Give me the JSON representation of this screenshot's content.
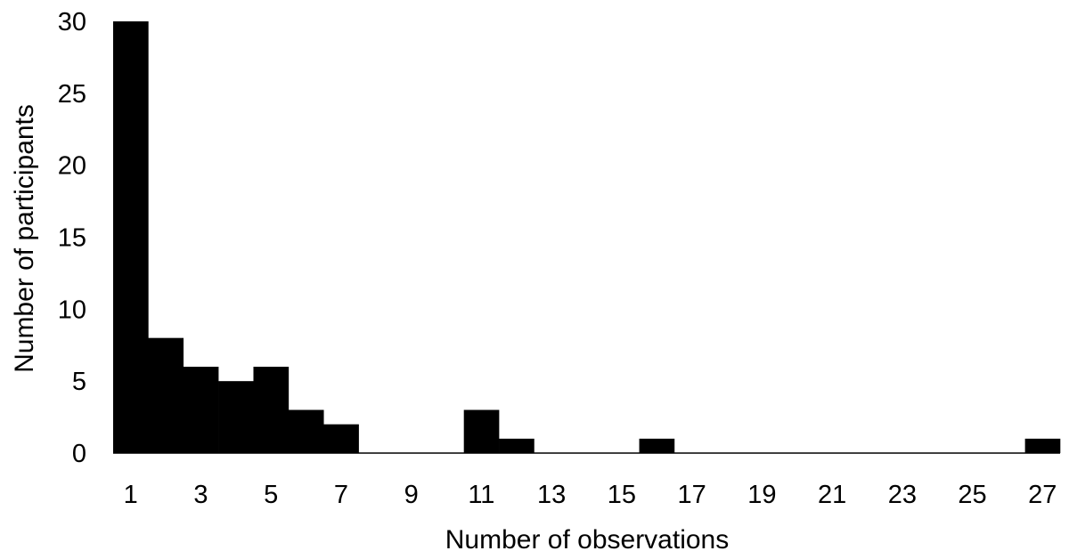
{
  "chart_data": {
    "type": "bar",
    "title": "",
    "xlabel": "Number of observations",
    "ylabel": "Number of participants",
    "categories": [
      "1",
      "2",
      "3",
      "4",
      "5",
      "6",
      "7",
      "8",
      "9",
      "10",
      "11",
      "12",
      "13",
      "14",
      "15",
      "16",
      "17",
      "18",
      "19",
      "20",
      "21",
      "22",
      "23",
      "24",
      "25",
      "26",
      "27"
    ],
    "x_tick_labels": [
      "1",
      "3",
      "5",
      "7",
      "9",
      "11",
      "13",
      "15",
      "17",
      "19",
      "21",
      "23",
      "25",
      "27"
    ],
    "values": [
      30,
      8,
      6,
      5,
      6,
      3,
      2,
      0,
      0,
      0,
      3,
      1,
      0,
      0,
      0,
      1,
      0,
      0,
      0,
      0,
      0,
      0,
      0,
      0,
      0,
      0,
      1
    ],
    "ylim": [
      0,
      30
    ],
    "y_ticks": [
      0,
      5,
      10,
      15,
      20,
      25,
      30
    ],
    "grid": false,
    "legend": "none",
    "bar_color": "#000000"
  }
}
